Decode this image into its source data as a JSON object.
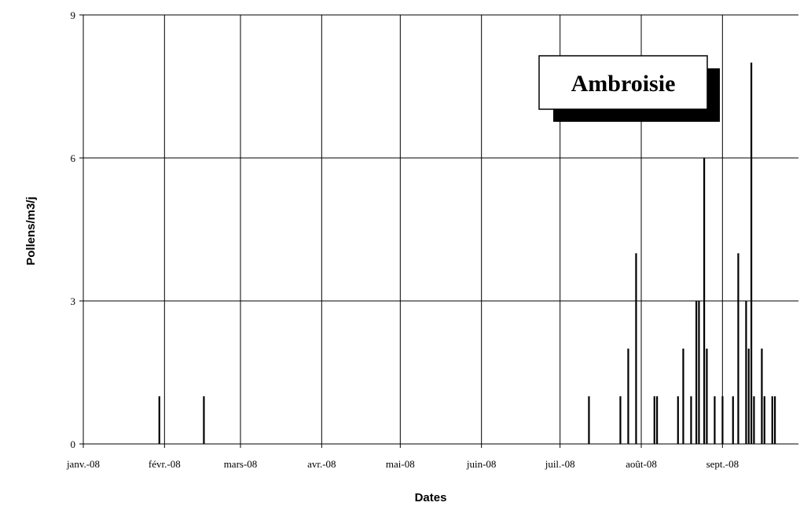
{
  "chart_data": {
    "type": "bar",
    "title": "Ambroisie",
    "xlabel": "Dates",
    "ylabel": "Pollens/m3/j",
    "ylim": [
      0,
      9
    ],
    "yticks": [
      0,
      3,
      6,
      9
    ],
    "xlim": [
      "2008-01-01",
      "2008-09-30"
    ],
    "xticks": [
      {
        "date": "2008-01-01",
        "label": "janv.-08"
      },
      {
        "date": "2008-02-01",
        "label": "févr.-08"
      },
      {
        "date": "2008-03-01",
        "label": "mars-08"
      },
      {
        "date": "2008-04-01",
        "label": "avr.-08"
      },
      {
        "date": "2008-05-01",
        "label": "mai-08"
      },
      {
        "date": "2008-06-01",
        "label": "juin-08"
      },
      {
        "date": "2008-07-01",
        "label": "juil.-08"
      },
      {
        "date": "2008-08-01",
        "label": "août-08"
      },
      {
        "date": "2008-09-01",
        "label": "sept.-08"
      }
    ],
    "grid": true,
    "legend": "none",
    "series_color": "#000000",
    "points": [
      {
        "x": "2008-01-30",
        "y": 1
      },
      {
        "x": "2008-02-16",
        "y": 1
      },
      {
        "x": "2008-07-12",
        "y": 1
      },
      {
        "x": "2008-07-24",
        "y": 1
      },
      {
        "x": "2008-07-27",
        "y": 2
      },
      {
        "x": "2008-07-30",
        "y": 4
      },
      {
        "x": "2008-08-06",
        "y": 1
      },
      {
        "x": "2008-08-07",
        "y": 1
      },
      {
        "x": "2008-08-15",
        "y": 1
      },
      {
        "x": "2008-08-17",
        "y": 2
      },
      {
        "x": "2008-08-20",
        "y": 1
      },
      {
        "x": "2008-08-22",
        "y": 3
      },
      {
        "x": "2008-08-23",
        "y": 3
      },
      {
        "x": "2008-08-25",
        "y": 6
      },
      {
        "x": "2008-08-26",
        "y": 2
      },
      {
        "x": "2008-08-29",
        "y": 1
      },
      {
        "x": "2008-09-01",
        "y": 1
      },
      {
        "x": "2008-09-05",
        "y": 1
      },
      {
        "x": "2008-09-07",
        "y": 4
      },
      {
        "x": "2008-09-10",
        "y": 3
      },
      {
        "x": "2008-09-11",
        "y": 2
      },
      {
        "x": "2008-09-12",
        "y": 8
      },
      {
        "x": "2008-09-13",
        "y": 1
      },
      {
        "x": "2008-09-16",
        "y": 2
      },
      {
        "x": "2008-09-17",
        "y": 1
      },
      {
        "x": "2008-09-20",
        "y": 1
      },
      {
        "x": "2008-09-21",
        "y": 1
      }
    ]
  }
}
